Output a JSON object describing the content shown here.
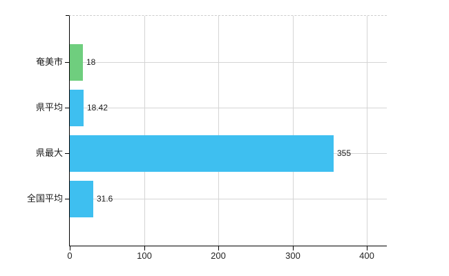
{
  "chart_data": {
    "type": "bar",
    "orientation": "horizontal",
    "title": "",
    "xlabel": "",
    "ylabel": "",
    "categories": [
      "奄美市",
      "県平均",
      "県最大",
      "全国平均"
    ],
    "values": [
      18,
      18.42,
      355,
      31.6
    ],
    "value_labels": [
      "18",
      "18.42",
      "355",
      "31.6"
    ],
    "series": [
      {
        "name": "",
        "values": [
          18,
          18.42,
          355,
          31.6
        ],
        "colors": [
          "#6fce7e",
          "#3ebff0",
          "#3ebff0",
          "#3ebff0"
        ]
      }
    ],
    "x_ticks": [
      0,
      100,
      200,
      300,
      400
    ],
    "x_tick_labels": [
      "0",
      "100",
      "200",
      "300",
      "400"
    ],
    "xlim": [
      0,
      400
    ],
    "grid": true,
    "legend": false
  },
  "colors": {
    "highlight_bar": "#6fce7e",
    "default_bar": "#3ebff0",
    "gridline": "#d4d4d4",
    "plot_top_border": "#cccccc",
    "axis": "#000000",
    "background": "#ffffff",
    "label_text": "#1a1a1a",
    "tick_text": "#222222"
  }
}
